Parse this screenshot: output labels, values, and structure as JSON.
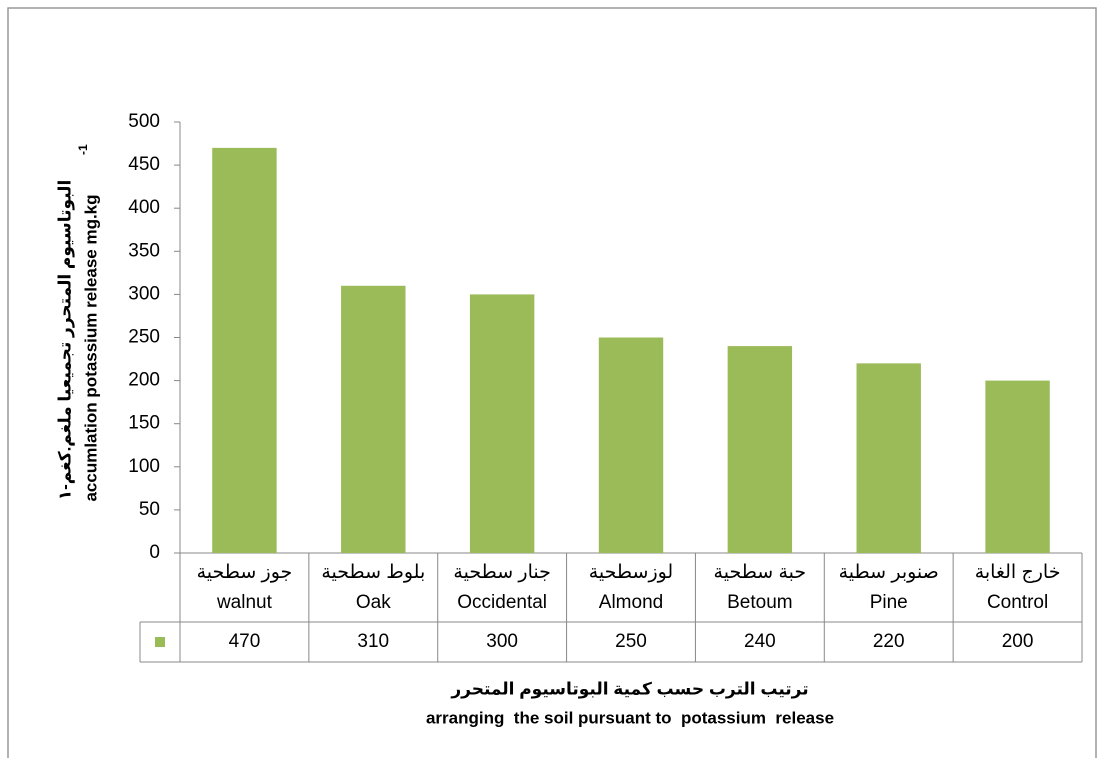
{
  "chart_data": {
    "type": "bar",
    "categories": [
      [
        "جوز سطحية",
        "walnut"
      ],
      [
        "بلوط سطحية",
        "Oak"
      ],
      [
        "جنار سطحية",
        "Occidental"
      ],
      [
        "لوزسطحية",
        "Almond"
      ],
      [
        "حبة سطحية",
        "Betoum"
      ],
      [
        "صنوبر سطية",
        "Pine"
      ],
      [
        "خارج الغابة",
        "Control"
      ]
    ],
    "values": [
      470,
      310,
      300,
      250,
      240,
      220,
      200
    ],
    "color": "#9bbb59",
    "ylim": [
      0,
      500
    ],
    "yticks": [
      0,
      50,
      100,
      150,
      200,
      250,
      300,
      350,
      400,
      450,
      500
    ],
    "ylabel_ar": "البوتاسيوم المتحرر تجميعيا ملغم.كغم-١",
    "ylabel_en": "accumlation potassium release mg.kg",
    "ylabel_en_sup": "-1",
    "xlabel_ar": "ترتيب الترب حسب كمية البوتاسيوم المتحرر",
    "xlabel_en": "arranging  the soil pursuant to  potassium  release"
  }
}
